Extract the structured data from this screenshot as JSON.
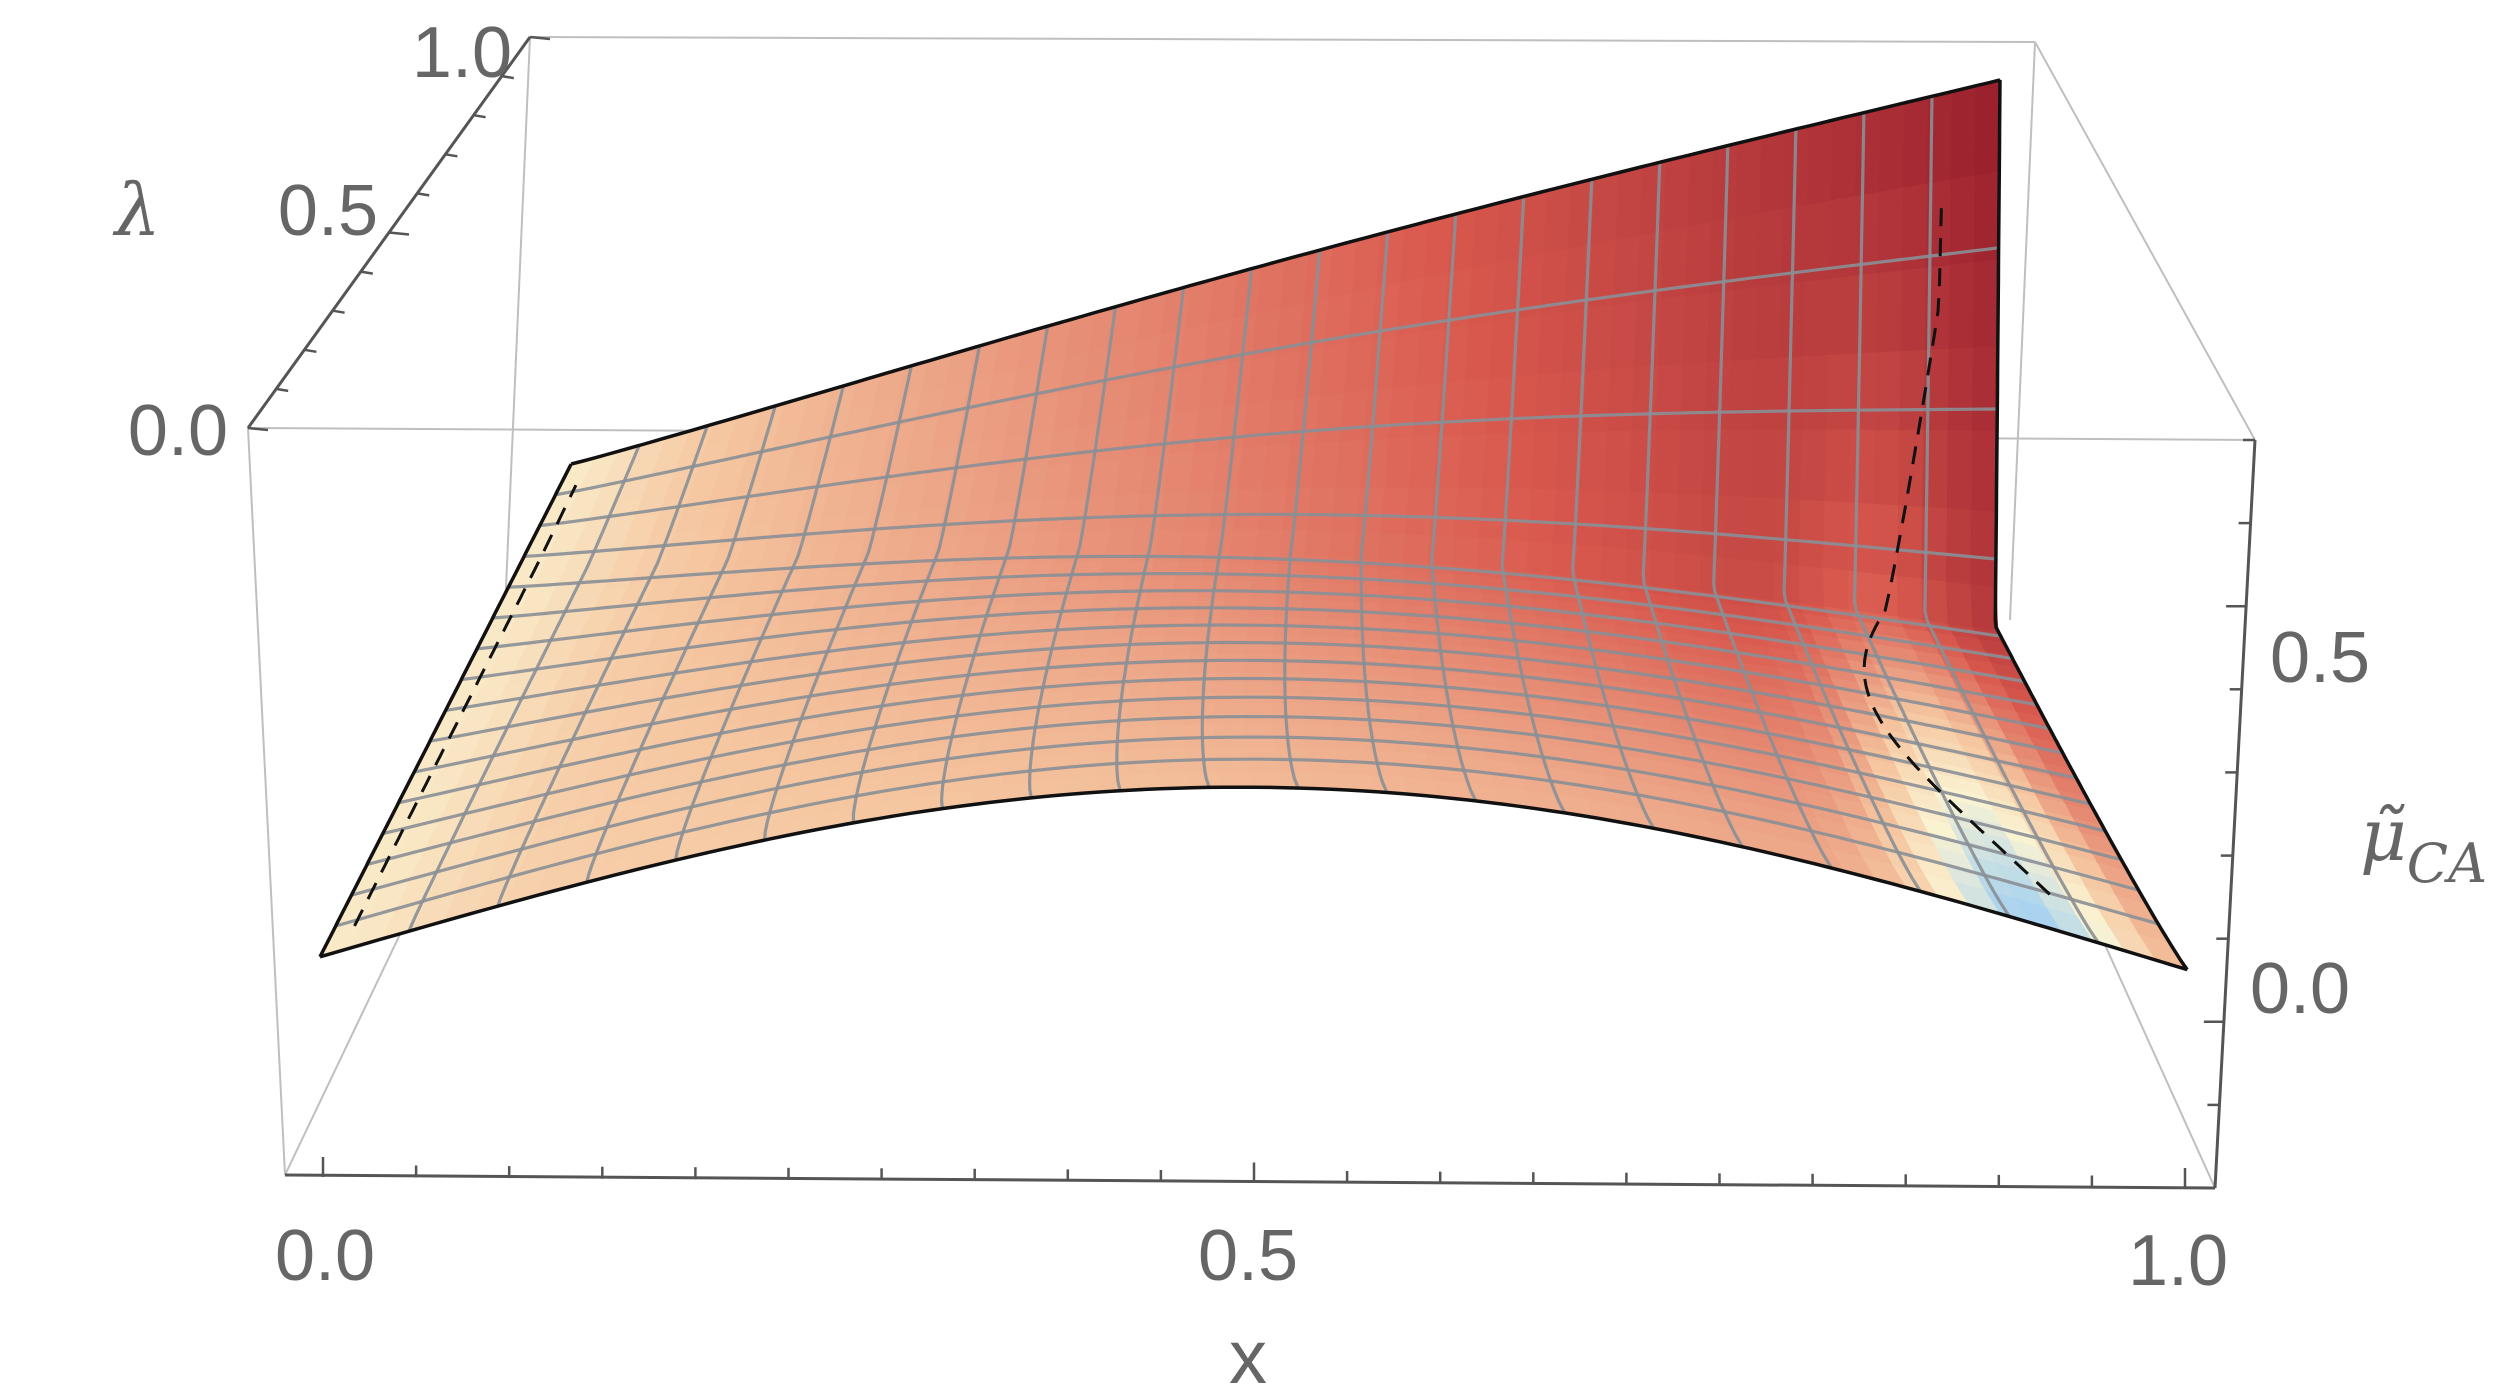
{
  "chart_data": {
    "type": "surface3d",
    "title": "",
    "axes": {
      "x": {
        "label": "x",
        "ticks": [
          "0.0",
          "0.5",
          "1.0"
        ],
        "range": [
          0,
          1
        ]
      },
      "y": {
        "label": "λ",
        "ticks": [
          "0.0",
          "0.5",
          "1.0"
        ],
        "range": [
          0,
          1
        ]
      },
      "z": {
        "label": "μ̃",
        "label_sub": "CA",
        "ticks": [
          "0.0",
          "0.5"
        ],
        "range": [
          -0.2,
          0.7
        ]
      }
    },
    "mesh": {
      "x_lines": 21,
      "lambda_lines": 16
    },
    "colors": {
      "low": "#a9d3ef",
      "mid_low": "#fbf3d2",
      "mid": "#f5c6a0",
      "mid_high": "#d9594e",
      "high": "#8c1426",
      "mesh": "#8a8f96",
      "edge": "#111111",
      "axis_text": "#666666",
      "box": "#bfbfbf"
    },
    "grid": false,
    "legend": "none",
    "has_dashed_contour": true
  }
}
